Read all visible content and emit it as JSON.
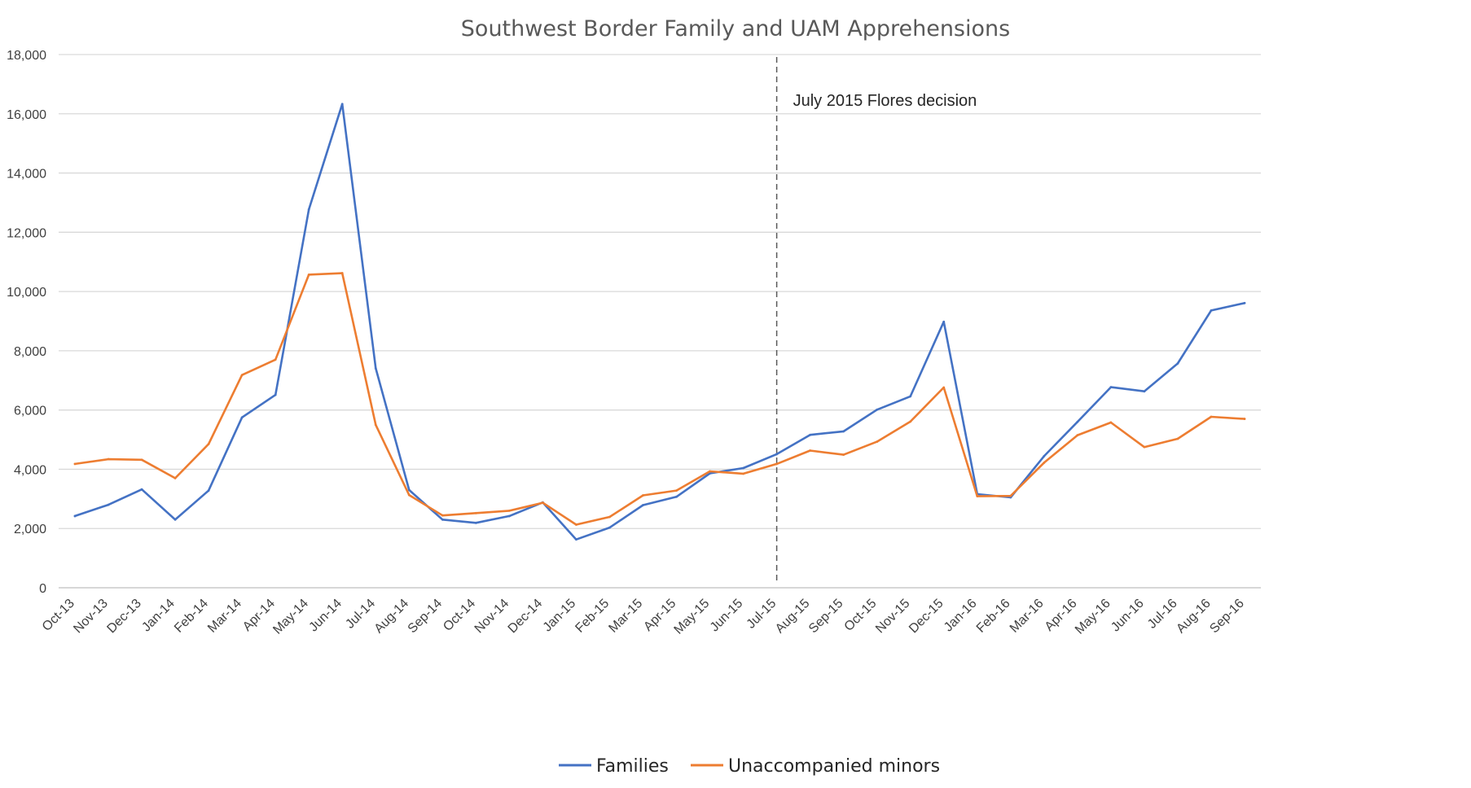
{
  "chart_data": {
    "type": "line",
    "title": "Southwest Border Family and UAM Apprehensions",
    "xlabel": "",
    "ylabel": "",
    "ylim": [
      0,
      18000
    ],
    "yticks": [
      0,
      2000,
      4000,
      6000,
      8000,
      10000,
      12000,
      14000,
      16000,
      18000
    ],
    "ytick_labels": [
      "0",
      "2,000",
      "4,000",
      "6,000",
      "8,000",
      "10,000",
      "12,000",
      "14,000",
      "16,000",
      "18,000"
    ],
    "grid": true,
    "legend_position": "bottom",
    "categories": [
      "Oct-13",
      "Nov-13",
      "Dec-13",
      "Jan-14",
      "Feb-14",
      "Mar-14",
      "Apr-14",
      "May-14",
      "Jun-14",
      "Jul-14",
      "Aug-14",
      "Sep-14",
      "Oct-14",
      "Nov-14",
      "Dec-14",
      "Jan-15",
      "Feb-15",
      "Mar-15",
      "Apr-15",
      "May-15",
      "Jun-15",
      "Jul-15",
      "Aug-15",
      "Sep-15",
      "Oct-15",
      "Nov-15",
      "Dec-15",
      "Jan-16",
      "Feb-16",
      "Mar-16",
      "Apr-16",
      "May-16",
      "Jun-16",
      "Jul-16",
      "Aug-16",
      "Sep-16"
    ],
    "series": [
      {
        "name": "Families",
        "color": "#4472C4",
        "values": [
          2420,
          2800,
          3320,
          2300,
          3280,
          5750,
          6510,
          12770,
          16330,
          7410,
          3300,
          2300,
          2190,
          2420,
          2880,
          1630,
          2030,
          2790,
          3070,
          3860,
          4040,
          4510,
          5160,
          5280,
          6010,
          6460,
          8980,
          3160,
          3050,
          4440,
          5600,
          6770,
          6630,
          7570,
          9360,
          9610
        ]
      },
      {
        "name": "Unaccompanied minors",
        "color": "#ED7D31",
        "values": [
          4180,
          4340,
          4320,
          3700,
          4850,
          7180,
          7700,
          10570,
          10620,
          5500,
          3130,
          2440,
          2520,
          2600,
          2870,
          2130,
          2390,
          3120,
          3280,
          3930,
          3850,
          4180,
          4630,
          4490,
          4930,
          5610,
          6760,
          3090,
          3100,
          4220,
          5150,
          5580,
          4750,
          5030,
          5770,
          5700
        ]
      }
    ],
    "annotations": [
      {
        "text": "July 2015 Flores decision",
        "at_category": "Jul-15",
        "style": "dashed-vertical-line"
      }
    ]
  }
}
